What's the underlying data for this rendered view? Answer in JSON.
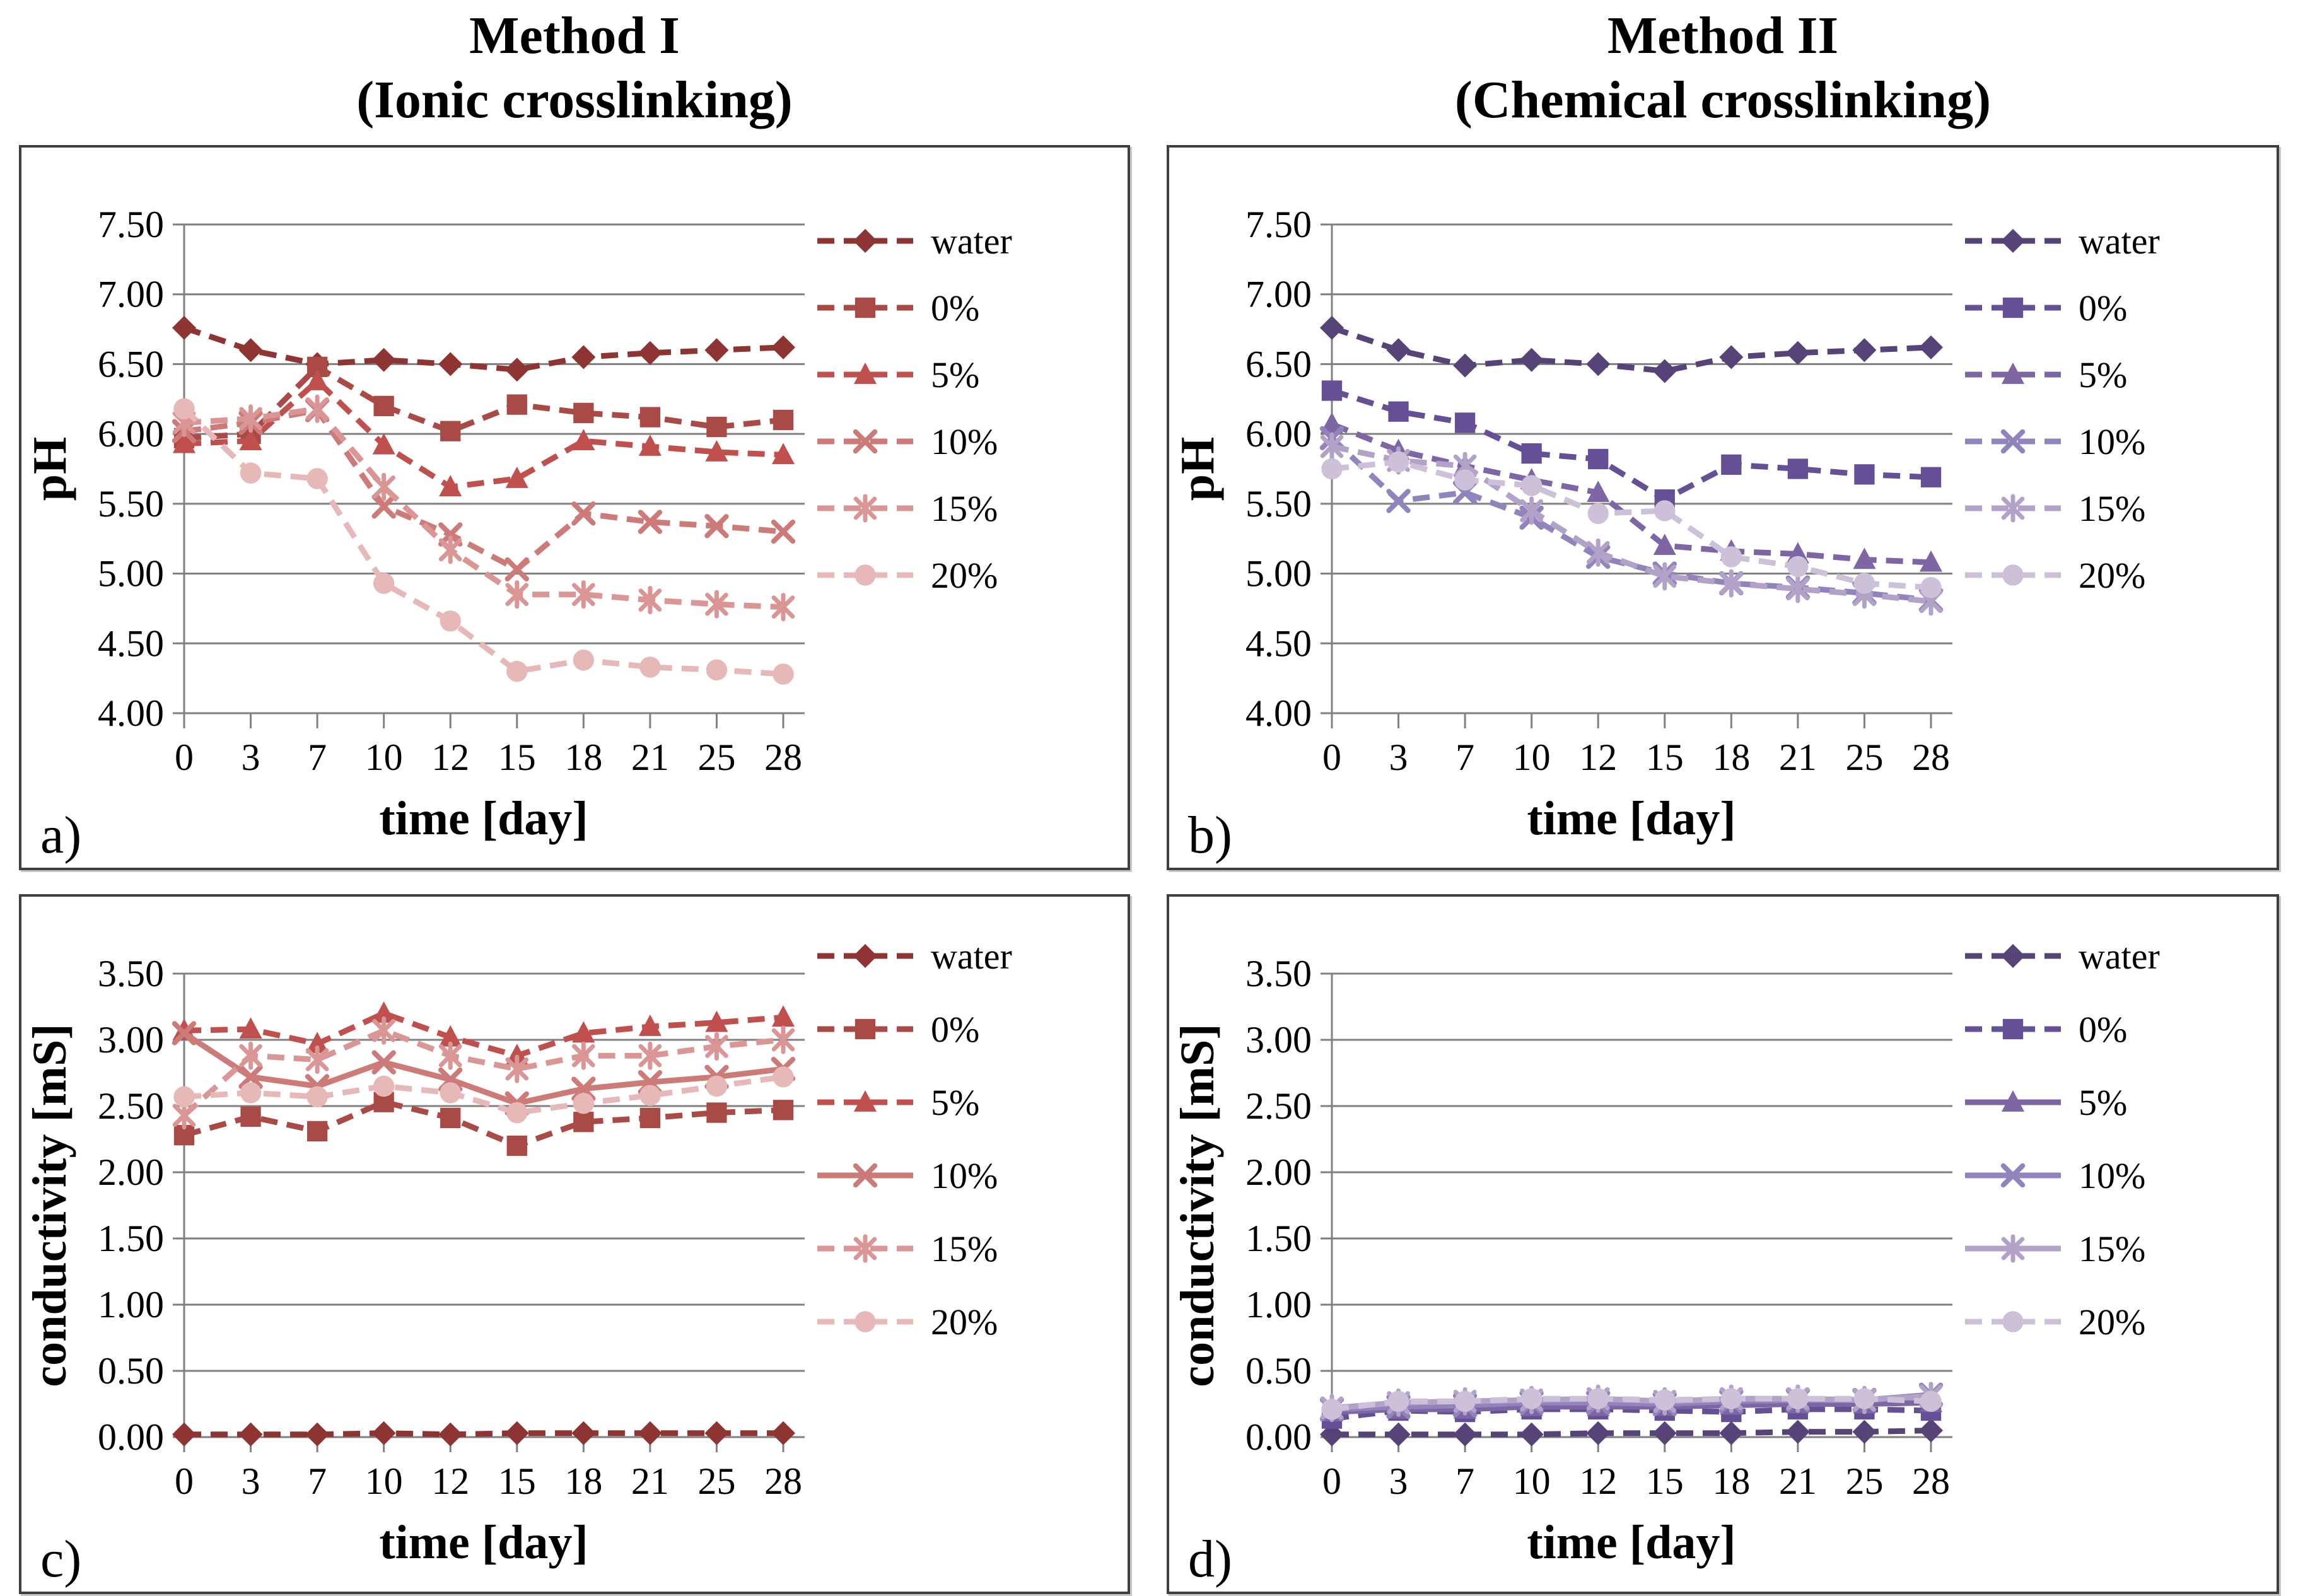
{
  "page": {
    "columns": [
      {
        "title_line1": "Method I",
        "title_line2": "(Ionic crosslinking)"
      },
      {
        "title_line1": "Method II",
        "title_line2": "(Chemical crosslinking)"
      }
    ],
    "styles": {
      "grid_color": "#808080",
      "axis_color": "#808080",
      "panel_border": "#3f3f3f"
    }
  },
  "chart_data": [
    {
      "id": "a",
      "panel_label": "a)",
      "type": "line",
      "title": "Method I (Ionic crosslinking)",
      "xlabel": "time [day]",
      "ylabel": "pH",
      "x": [
        0,
        3,
        7,
        10,
        12,
        15,
        18,
        21,
        25,
        28
      ],
      "ylim": [
        4.0,
        7.5
      ],
      "ytick_step": 0.5,
      "grid": true,
      "legend_position": "right",
      "series": [
        {
          "name": "water",
          "color": "#8E3432",
          "marker": "diamond",
          "line": "dashed",
          "values": [
            6.76,
            6.6,
            6.5,
            6.53,
            6.5,
            6.46,
            6.55,
            6.58,
            6.6,
            6.62
          ]
        },
        {
          "name": "0%",
          "color": "#AA4A47",
          "marker": "square",
          "line": "dashed",
          "values": [
            5.97,
            6.0,
            6.48,
            6.2,
            6.02,
            6.21,
            6.15,
            6.12,
            6.05,
            6.1
          ]
        },
        {
          "name": "5%",
          "color": "#C0504D",
          "marker": "triangle",
          "line": "dashed",
          "values": [
            5.93,
            5.95,
            6.38,
            5.92,
            5.62,
            5.68,
            5.95,
            5.91,
            5.87,
            5.85
          ]
        },
        {
          "name": "10%",
          "color": "#CC7B79",
          "marker": "x",
          "line": "dashed",
          "values": [
            6.02,
            6.08,
            6.17,
            5.48,
            5.28,
            5.03,
            5.43,
            5.37,
            5.34,
            5.3
          ]
        },
        {
          "name": "15%",
          "color": "#D99694",
          "marker": "star",
          "line": "dashed",
          "values": [
            6.08,
            6.11,
            6.18,
            5.62,
            5.17,
            4.85,
            4.85,
            4.81,
            4.78,
            4.76
          ]
        },
        {
          "name": "20%",
          "color": "#E6B9B8",
          "marker": "circle",
          "line": "dashed",
          "values": [
            6.18,
            5.72,
            5.68,
            4.93,
            4.66,
            4.3,
            4.38,
            4.33,
            4.31,
            4.28
          ]
        }
      ]
    },
    {
      "id": "b",
      "panel_label": "b)",
      "type": "line",
      "title": "Method II (Chemical crosslinking)",
      "xlabel": "time [day]",
      "ylabel": "pH",
      "x": [
        0,
        3,
        7,
        10,
        12,
        15,
        18,
        21,
        25,
        28
      ],
      "ylim": [
        4.0,
        7.5
      ],
      "ytick_step": 0.5,
      "grid": true,
      "legend_position": "right",
      "series": [
        {
          "name": "water",
          "color": "#564377",
          "marker": "diamond",
          "line": "dashed",
          "values": [
            6.76,
            6.6,
            6.49,
            6.53,
            6.5,
            6.45,
            6.55,
            6.58,
            6.6,
            6.62
          ]
        },
        {
          "name": "0%",
          "color": "#655096",
          "marker": "square",
          "line": "dashed",
          "values": [
            6.31,
            6.16,
            6.08,
            5.86,
            5.82,
            5.53,
            5.78,
            5.75,
            5.71,
            5.69
          ]
        },
        {
          "name": "5%",
          "color": "#7E66A5",
          "marker": "triangle",
          "line": "dashed",
          "values": [
            6.07,
            5.88,
            5.77,
            5.67,
            5.58,
            5.2,
            5.16,
            5.14,
            5.1,
            5.08
          ]
        },
        {
          "name": "10%",
          "color": "#9184BC",
          "marker": "x",
          "line": "dashed",
          "values": [
            5.97,
            5.52,
            5.58,
            5.4,
            5.12,
            5.0,
            4.93,
            4.9,
            4.86,
            4.81
          ]
        },
        {
          "name": "15%",
          "color": "#B3A2C7",
          "marker": "star",
          "line": "dashed",
          "values": [
            5.91,
            5.81,
            5.77,
            5.45,
            5.15,
            4.98,
            4.93,
            4.89,
            4.85,
            4.8
          ]
        },
        {
          "name": "20%",
          "color": "#CCC1D9",
          "marker": "circle",
          "line": "dashed",
          "values": [
            5.75,
            5.8,
            5.67,
            5.63,
            5.43,
            5.45,
            5.12,
            5.05,
            4.93,
            4.9
          ]
        }
      ]
    },
    {
      "id": "c",
      "panel_label": "c)",
      "type": "line",
      "title": "Method I (Ionic crosslinking)",
      "xlabel": "time [day]",
      "ylabel": "conductivity [mS]",
      "x": [
        0,
        3,
        7,
        10,
        12,
        15,
        18,
        21,
        25,
        28
      ],
      "ylim": [
        0.0,
        3.5
      ],
      "ytick_step": 0.5,
      "grid": true,
      "legend_position": "right",
      "series": [
        {
          "name": "water",
          "color": "#8E3432",
          "marker": "diamond",
          "line": "dashed",
          "values": [
            0.02,
            0.02,
            0.02,
            0.03,
            0.02,
            0.03,
            0.03,
            0.03,
            0.03,
            0.03
          ]
        },
        {
          "name": "0%",
          "color": "#AA4A47",
          "marker": "square",
          "line": "dashed",
          "values": [
            2.28,
            2.42,
            2.31,
            2.53,
            2.41,
            2.2,
            2.38,
            2.41,
            2.45,
            2.47
          ]
        },
        {
          "name": "5%",
          "color": "#C0504D",
          "marker": "triangle",
          "line": "dashed",
          "values": [
            3.07,
            3.08,
            2.97,
            3.2,
            3.02,
            2.88,
            3.05,
            3.1,
            3.13,
            3.17
          ]
        },
        {
          "name": "10%",
          "color": "#CC7B79",
          "marker": "x",
          "line": "solid",
          "values": [
            3.05,
            2.72,
            2.65,
            2.83,
            2.7,
            2.52,
            2.63,
            2.68,
            2.72,
            2.78
          ]
        },
        {
          "name": "15%",
          "color": "#D99694",
          "marker": "star",
          "line": "dashed",
          "values": [
            2.43,
            2.88,
            2.85,
            3.07,
            2.88,
            2.78,
            2.88,
            2.88,
            2.95,
            3.0
          ]
        },
        {
          "name": "20%",
          "color": "#E6B9B8",
          "marker": "circle",
          "line": "dashed",
          "values": [
            2.57,
            2.6,
            2.57,
            2.65,
            2.6,
            2.45,
            2.52,
            2.58,
            2.65,
            2.72
          ]
        }
      ]
    },
    {
      "id": "d",
      "panel_label": "d)",
      "type": "line",
      "title": "Method II (Chemical crosslinking)",
      "xlabel": "time [day]",
      "ylabel": "conductivity [mS]",
      "x": [
        0,
        3,
        7,
        10,
        12,
        15,
        18,
        21,
        25,
        28
      ],
      "ylim": [
        0.0,
        3.5
      ],
      "ytick_step": 0.5,
      "grid": true,
      "legend_position": "right",
      "series": [
        {
          "name": "water",
          "color": "#564377",
          "marker": "diamond",
          "line": "dashed",
          "values": [
            0.02,
            0.02,
            0.02,
            0.02,
            0.03,
            0.03,
            0.03,
            0.04,
            0.04,
            0.05
          ]
        },
        {
          "name": "0%",
          "color": "#655096",
          "marker": "square",
          "line": "dashed",
          "values": [
            0.14,
            0.2,
            0.19,
            0.21,
            0.21,
            0.2,
            0.19,
            0.21,
            0.21,
            0.2
          ]
        },
        {
          "name": "5%",
          "color": "#7E66A5",
          "marker": "triangle",
          "line": "solid",
          "values": [
            0.19,
            0.21,
            0.21,
            0.23,
            0.23,
            0.23,
            0.24,
            0.25,
            0.25,
            0.26
          ]
        },
        {
          "name": "10%",
          "color": "#9184BC",
          "marker": "x",
          "line": "solid",
          "values": [
            0.21,
            0.23,
            0.24,
            0.26,
            0.26,
            0.25,
            0.27,
            0.28,
            0.28,
            0.32
          ]
        },
        {
          "name": "15%",
          "color": "#B3A2C7",
          "marker": "star",
          "line": "solid",
          "values": [
            0.22,
            0.26,
            0.27,
            0.28,
            0.29,
            0.27,
            0.29,
            0.29,
            0.28,
            0.31
          ]
        },
        {
          "name": "20%",
          "color": "#CCC1D9",
          "marker": "circle",
          "line": "dashed",
          "values": [
            0.21,
            0.27,
            0.27,
            0.29,
            0.29,
            0.28,
            0.29,
            0.29,
            0.29,
            0.27
          ]
        }
      ]
    }
  ]
}
